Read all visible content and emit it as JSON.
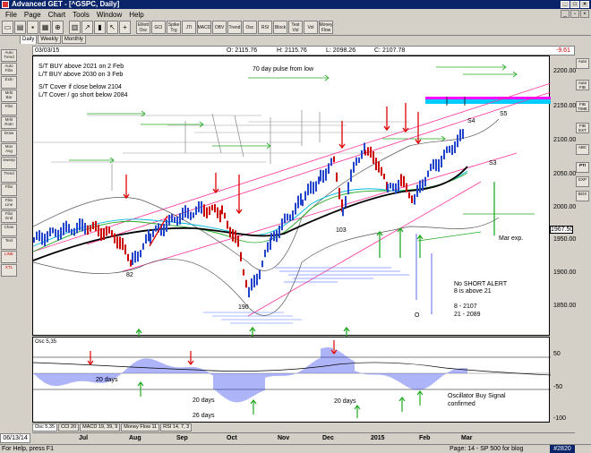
{
  "window": {
    "title": "Advanced GET - [^GSPC, Daily]"
  },
  "menu": [
    "File",
    "Page",
    "Chart",
    "Tools",
    "Window",
    "Help"
  ],
  "toolbar": {
    "buttons": [
      "Elliott Osc",
      "GCI",
      "Spike Trg",
      "JTI",
      "MACD",
      "OBV",
      "Trend",
      "Osc",
      "RSI",
      "Block",
      "Test Vol",
      "Vol",
      "Money Flow"
    ]
  },
  "section_tabs": [
    "Daily",
    "Weekly",
    "Monthly"
  ],
  "left_tools": [
    "Auto Trend",
    "Auto Fibs",
    "Extn",
    "Mrkt Bar",
    "Fibs",
    "Mrkt Rotn",
    "Draw",
    "Mov Avg",
    "Sweep",
    "Trend",
    "Fibs",
    "Fibs Line",
    "Fibs Grid",
    "Chan",
    "Text",
    "LINE",
    "XTL"
  ],
  "right_tools": [
    "Auto",
    "Auto FIB",
    "FIB TIME",
    "FIB EXT",
    "ABC",
    "PTI",
    "EXP",
    "BOX"
  ],
  "ohlc": {
    "date": "03/03/15",
    "open": "O: 2115.76",
    "high": "H: 2115.76",
    "low": "L: 2098.26",
    "close": "C: 2107.78",
    "change": "-9.61"
  },
  "annotations": {
    "st_buy": "S/T BUY above 2021 on 2 Feb",
    "lt_buy": "L/T BUY above 2030 on 3 Feb",
    "st_cover": "S/T Cover if close below 2104",
    "lt_cover": "L/T Cover / go short below 2084",
    "pulse": "70 day pulse from low",
    "s4": "S4",
    "s5": "S5",
    "s3": "S3",
    "l82": "82",
    "l103": "103",
    "l190": "190",
    "o": "O",
    "mar_exp": "Mar exp.",
    "no_short": "No SHORT ALERT",
    "above": "8 is above 21",
    "ma8": "8   - 2107",
    "ma21": "21 - 2089",
    "osc_label": "Osc 5,35",
    "d1": "20 days",
    "d2": "20 days",
    "d3": "26 days",
    "d4": "20 days",
    "buy_signal": "Oscillator Buy Signal",
    "confirmed": "confirmed"
  },
  "price_axis": [
    "2200.00",
    "2150.00",
    "2100.00",
    "2050.00",
    "2000.00",
    "1950.00",
    "1900.00",
    "1850.00"
  ],
  "last_price": "1967.50",
  "osc_axis": [
    "50",
    "-50",
    "-100"
  ],
  "bottom_tabs": [
    "Osc 5,35",
    "CCI 20",
    "MACD 19, 39, 9",
    "Money Flow 11",
    "RSI 14, 7, 3"
  ],
  "x_axis": [
    "Jul",
    "Aug",
    "Sep",
    "Oct",
    "Nov",
    "Dec",
    "2015",
    "Feb",
    "Mar"
  ],
  "bottom_date": "06/13/14",
  "status": {
    "help": "For Help, press F1",
    "page": "Page: 14 - SP 500 for blog",
    "counter": "#2820"
  },
  "colors": {
    "up_candle": "#2244cc",
    "down_candle": "#cc0000",
    "magenta": "#ff00ff",
    "cyan": "#00ccff",
    "green_arrow": "#22aa22",
    "red_arrow": "#dd0000"
  }
}
